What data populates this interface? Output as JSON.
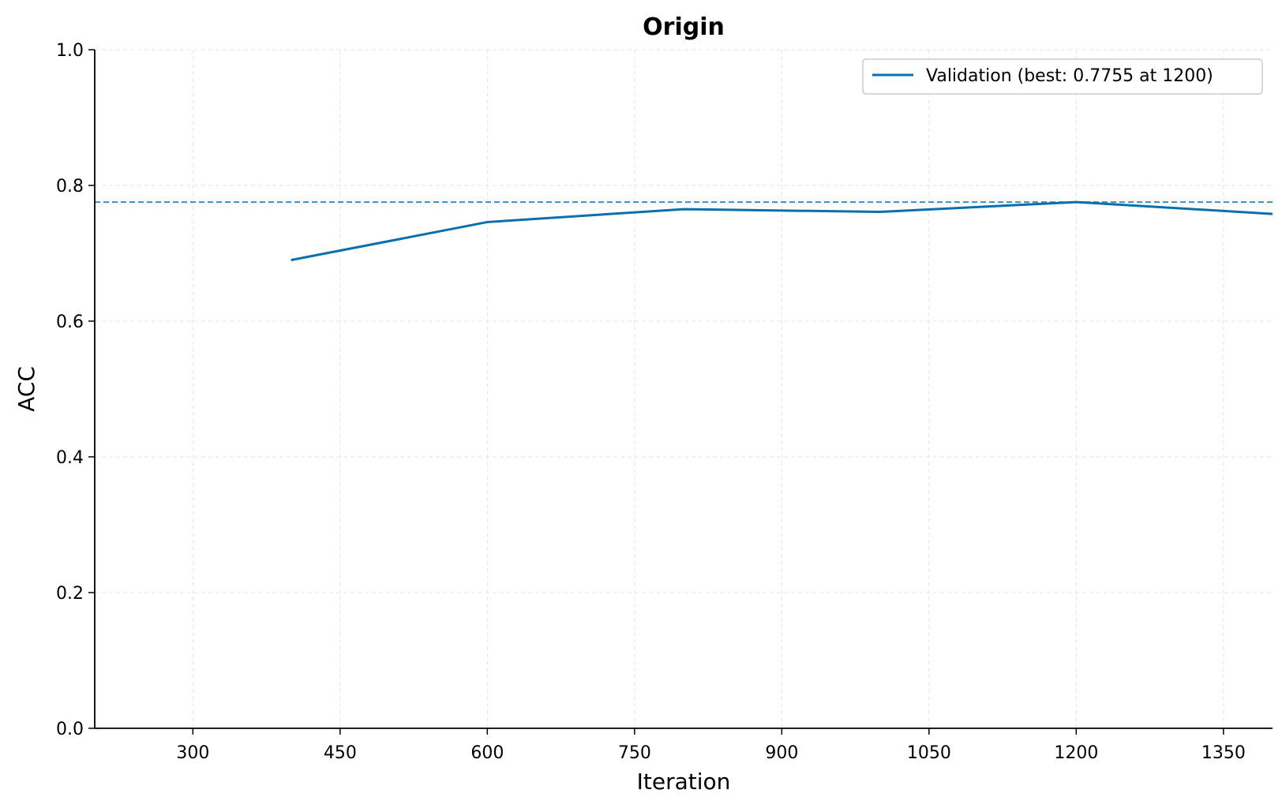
{
  "chart_data": {
    "type": "line",
    "title": "Origin",
    "xlabel": "Iteration",
    "ylabel": "ACC",
    "xlim": [
      200,
      1400
    ],
    "ylim": [
      0,
      1.0
    ],
    "xticks": [
      300,
      450,
      600,
      750,
      900,
      1050,
      1200,
      1350
    ],
    "yticks": [
      0.0,
      0.2,
      0.4,
      0.6,
      0.8,
      1.0
    ],
    "ytick_labels": [
      "0.0",
      "0.2",
      "0.4",
      "0.6",
      "0.8",
      "1.0"
    ],
    "grid": true,
    "legend_position": "top-right",
    "series": [
      {
        "name": "Validation (best: 0.7755 at 1200)",
        "color": "#0a6fad",
        "x": [
          400,
          600,
          800,
          1000,
          1200,
          1400
        ],
        "y": [
          0.69,
          0.746,
          0.765,
          0.761,
          0.7755,
          0.758
        ]
      }
    ],
    "reference_line": {
      "y": 0.7755,
      "style": "dashed",
      "color": "#3a8fc7"
    }
  }
}
